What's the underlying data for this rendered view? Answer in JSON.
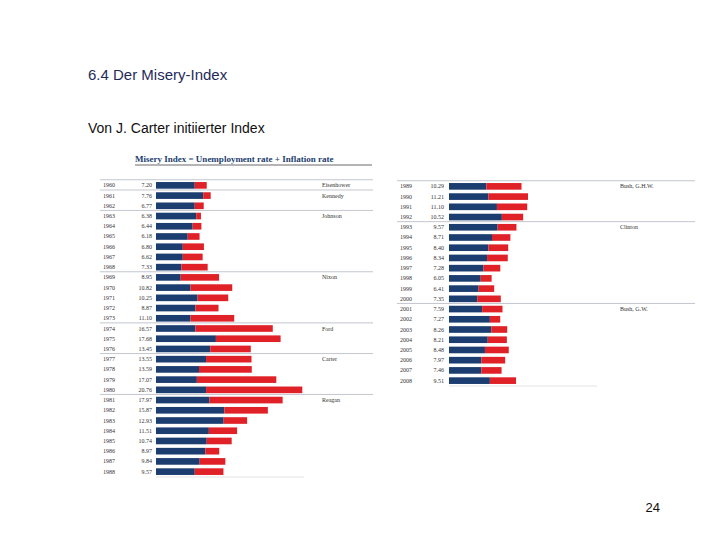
{
  "slide": {
    "title": "6.4 Der Misery-Index",
    "subtitle": "Von J. Carter initiierter Index",
    "page": "24"
  },
  "chart_data": [
    {
      "type": "bar",
      "orientation": "horizontal",
      "stacked": true,
      "tick_labels": false,
      "title": "Misery Index = Unemployment rate + Inflation rate",
      "xlim": [
        0,
        21
      ],
      "categories": [
        "1960",
        "1961",
        "1962",
        "1963",
        "1964",
        "1965",
        "1966",
        "1967",
        "1968",
        "1969",
        "1970",
        "1971",
        "1972",
        "1973",
        "1974",
        "1975",
        "1976",
        "1977",
        "1978",
        "1979",
        "1980",
        "1981",
        "1982",
        "1983",
        "1984",
        "1985",
        "1986",
        "1987",
        "1988"
      ],
      "series": [
        {
          "name": "Unemployment rate",
          "color": "#1c3d70",
          "values": [
            5.5,
            6.7,
            5.5,
            5.7,
            5.2,
            4.5,
            3.8,
            3.8,
            3.6,
            3.5,
            4.9,
            5.9,
            5.6,
            4.9,
            5.6,
            8.5,
            7.7,
            7.1,
            6.1,
            5.8,
            7.1,
            7.6,
            9.7,
            9.6,
            7.5,
            7.2,
            7.0,
            6.2,
            5.5
          ]
        },
        {
          "name": "Inflation rate",
          "color": "#e02228",
          "values": [
            1.7,
            1.06,
            1.27,
            0.68,
            1.24,
            1.68,
            3.0,
            2.82,
            3.73,
            5.45,
            5.92,
            4.35,
            3.27,
            6.2,
            10.97,
            9.18,
            5.75,
            6.45,
            7.49,
            11.27,
            13.66,
            10.37,
            6.17,
            3.33,
            4.01,
            3.54,
            1.97,
            3.64,
            4.07
          ]
        }
      ],
      "value_labels": [
        "7.20",
        "7.76",
        "6.77",
        "6.38",
        "6.44",
        "6.18",
        "6.80",
        "6.62",
        "7.33",
        "8.95",
        "10.82",
        "10.25",
        "8.87",
        "11.10",
        "16.57",
        "17.68",
        "13.45",
        "13.55",
        "13.59",
        "17.07",
        "20.76",
        "17.97",
        "15.87",
        "12.93",
        "11.51",
        "10.74",
        "8.97",
        "9.84",
        "9.57"
      ],
      "annotations": [
        {
          "text": "Eisenhower",
          "category": "1960"
        },
        {
          "text": "Kennedy",
          "category": "1961"
        },
        {
          "text": "Johnson",
          "category": "1963"
        },
        {
          "text": "Nixon",
          "category": "1969"
        },
        {
          "text": "Ford",
          "category": "1974"
        },
        {
          "text": "Carter",
          "category": "1977"
        },
        {
          "text": "Reagan",
          "category": "1981"
        }
      ]
    },
    {
      "type": "bar",
      "orientation": "horizontal",
      "stacked": true,
      "tick_labels": false,
      "xlim": [
        0,
        21
      ],
      "categories": [
        "1989",
        "1990",
        "1991",
        "1992",
        "1993",
        "1994",
        "1995",
        "1996",
        "1997",
        "1998",
        "1999",
        "2000",
        "2001",
        "2002",
        "2003",
        "2004",
        "2005",
        "2006",
        "2007",
        "2008"
      ],
      "series": [
        {
          "name": "Unemployment rate",
          "color": "#1c3d70",
          "values": [
            5.3,
            5.6,
            6.8,
            7.5,
            6.9,
            6.1,
            5.6,
            5.4,
            4.9,
            4.5,
            4.2,
            4.0,
            4.7,
            5.8,
            6.0,
            5.5,
            5.1,
            4.6,
            4.6,
            5.8
          ]
        },
        {
          "name": "Inflation rate",
          "color": "#e02228",
          "values": [
            4.99,
            5.61,
            4.3,
            3.02,
            2.67,
            2.61,
            2.8,
            2.94,
            2.38,
            1.55,
            2.21,
            3.35,
            2.89,
            1.47,
            2.26,
            2.71,
            3.38,
            3.37,
            2.86,
            3.71
          ]
        }
      ],
      "value_labels": [
        "10.29",
        "11.21",
        "11.10",
        "10.52",
        "9.57",
        "8.71",
        "8.40",
        "8.34",
        "7.28",
        "6.05",
        "6.41",
        "7.35",
        "7.59",
        "7.27",
        "8.26",
        "8.21",
        "8.48",
        "7.97",
        "7.46",
        "9.51"
      ],
      "annotations": [
        {
          "text": "Bush, G.H.W.",
          "category": "1989"
        },
        {
          "text": "Clinton",
          "category": "1993"
        },
        {
          "text": "Bush, G.W.",
          "category": "2001"
        }
      ]
    }
  ]
}
